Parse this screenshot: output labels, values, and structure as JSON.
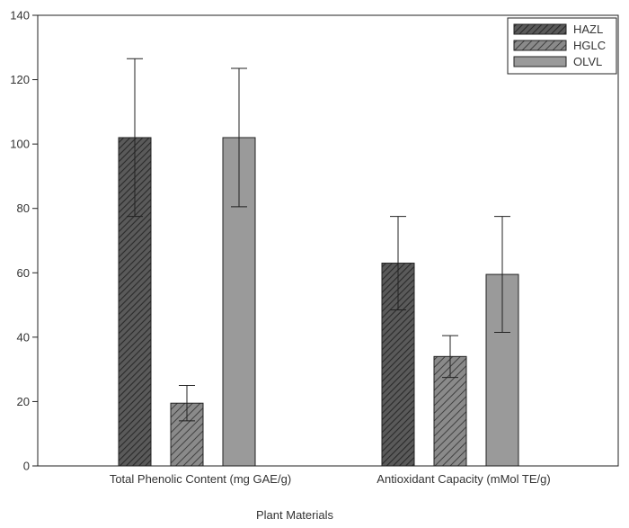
{
  "chart_data": {
    "type": "bar",
    "title": "",
    "xlabel": "Plant Materials",
    "ylabel": "",
    "ylim": [
      0,
      140
    ],
    "yticks": [
      0,
      20,
      40,
      60,
      80,
      100,
      120,
      140
    ],
    "grid": false,
    "legend_position": "top-right",
    "categories": [
      "Total Phenolic Content (mg GAE/g)",
      "Antioxidant Capacity  (mMol TE/g)"
    ],
    "series": [
      {
        "name": "HAZL",
        "values": [
          102,
          63
        ],
        "error": [
          24.5,
          14.5
        ],
        "color": "#4a4a4a",
        "pattern": "dense-hatch"
      },
      {
        "name": "HGLC",
        "values": [
          19.5,
          34
        ],
        "error": [
          5.5,
          6.5
        ],
        "color": "#707070",
        "pattern": "hatch"
      },
      {
        "name": "OLVL",
        "values": [
          102,
          59.5
        ],
        "error": [
          21.5,
          18
        ],
        "color": "#9a9a9a",
        "pattern": "solid"
      }
    ]
  }
}
